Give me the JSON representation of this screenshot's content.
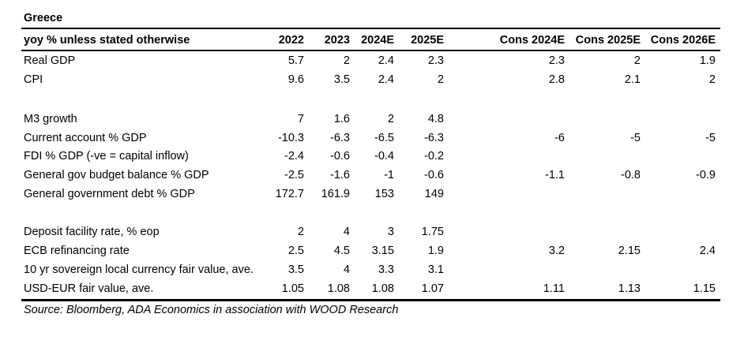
{
  "title": "Greece",
  "header": {
    "label": "yoy % unless stated otherwise",
    "columns": [
      "2022",
      "2023",
      "2024E",
      "2025E",
      "Cons 2024E",
      "Cons 2025E",
      "Cons 2026E"
    ]
  },
  "rows": [
    {
      "label": "Real GDP",
      "values": [
        "5.7",
        "2",
        "2.4",
        "2.3",
        "2.3",
        "2",
        "1.9"
      ]
    },
    {
      "label": "CPI",
      "values": [
        "9.6",
        "3.5",
        "2.4",
        "2",
        "2.8",
        "2.1",
        "2"
      ]
    },
    {
      "label": "M3 growth",
      "values": [
        "7",
        "1.6",
        "2",
        "4.8",
        "",
        "",
        ""
      ]
    },
    {
      "label": "Current account % GDP",
      "values": [
        "-10.3",
        "-6.3",
        "-6.5",
        "-6.3",
        "-6",
        "-5",
        "-5"
      ]
    },
    {
      "label": "FDI % GDP (-ve = capital inflow)",
      "values": [
        "-2.4",
        "-0.6",
        "-0.4",
        "-0.2",
        "",
        "",
        ""
      ]
    },
    {
      "label": "General gov budget balance % GDP",
      "values": [
        "-2.5",
        "-1.6",
        "-1",
        "-0.6",
        "-1.1",
        "-0.8",
        "-0.9"
      ]
    },
    {
      "label": "General government debt % GDP",
      "values": [
        "172.7",
        "161.9",
        "153",
        "149",
        "",
        "",
        ""
      ]
    },
    {
      "label": "Deposit facility rate, % eop",
      "values": [
        "2",
        "4",
        "3",
        "1.75",
        "",
        "",
        ""
      ]
    },
    {
      "label": "ECB refinancing rate",
      "values": [
        "2.5",
        "4.5",
        "3.15",
        "1.9",
        "3.2",
        "2.15",
        "2.4"
      ]
    },
    {
      "label": "10 yr sovereign local currency fair value, ave.",
      "values": [
        "3.5",
        "4",
        "3.3",
        "3.1",
        "",
        "",
        ""
      ]
    },
    {
      "label": "USD-EUR fair value, ave.",
      "values": [
        "1.05",
        "1.08",
        "1.08",
        "1.07",
        "1.11",
        "1.13",
        "1.15"
      ]
    }
  ],
  "source": "Source: Bloomberg, ADA Economics in association with WOOD Research"
}
